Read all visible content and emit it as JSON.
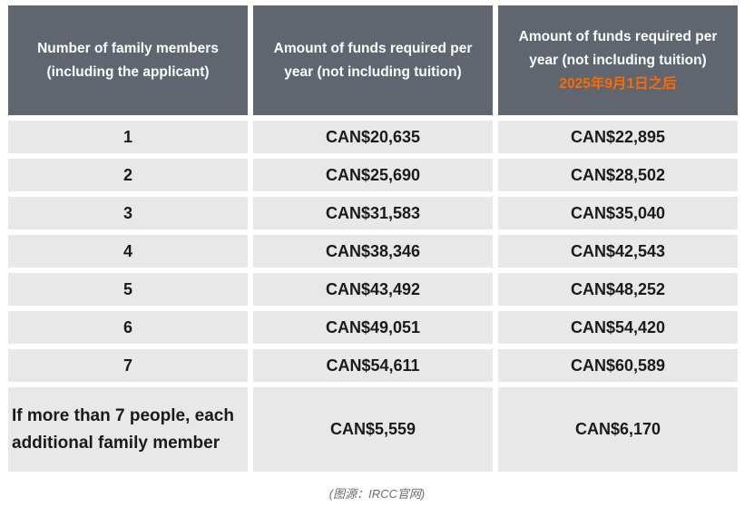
{
  "header": {
    "col1_line1": "Number of family members",
    "col1_line2": "(including  the applicant)",
    "col2_line1": "Amount of funds required per",
    "col2_line2": "year (not  including tuition)",
    "col3_line1": "Amount of funds required per",
    "col3_line2": "year (not including tuition)",
    "col3_line3": "2025年9月1日之后",
    "accent_color": "#ff6a00",
    "header_bg": "#5f6670"
  },
  "rows": [
    {
      "members": "1",
      "current": "CAN$20,635",
      "new": "CAN$22,895"
    },
    {
      "members": "2",
      "current": "CAN$25,690",
      "new": "CAN$28,502"
    },
    {
      "members": "3",
      "current": "CAN$31,583",
      "new": "CAN$35,040"
    },
    {
      "members": "4",
      "current": "CAN$38,346",
      "new": "CAN$42,543"
    },
    {
      "members": "5",
      "current": "CAN$43,492",
      "new": "CAN$48,252"
    },
    {
      "members": "6",
      "current": "CAN$49,051",
      "new": "CAN$54,420"
    },
    {
      "members": "7",
      "current": "CAN$54,611",
      "new": "CAN$60,589"
    }
  ],
  "extra_row": {
    "members_line1": "If more than 7 people, each",
    "members_line2": "additional  family member",
    "current": "CAN$5,559",
    "new": "CAN$6,170"
  },
  "caption": "(图源：IRCC官网)"
}
